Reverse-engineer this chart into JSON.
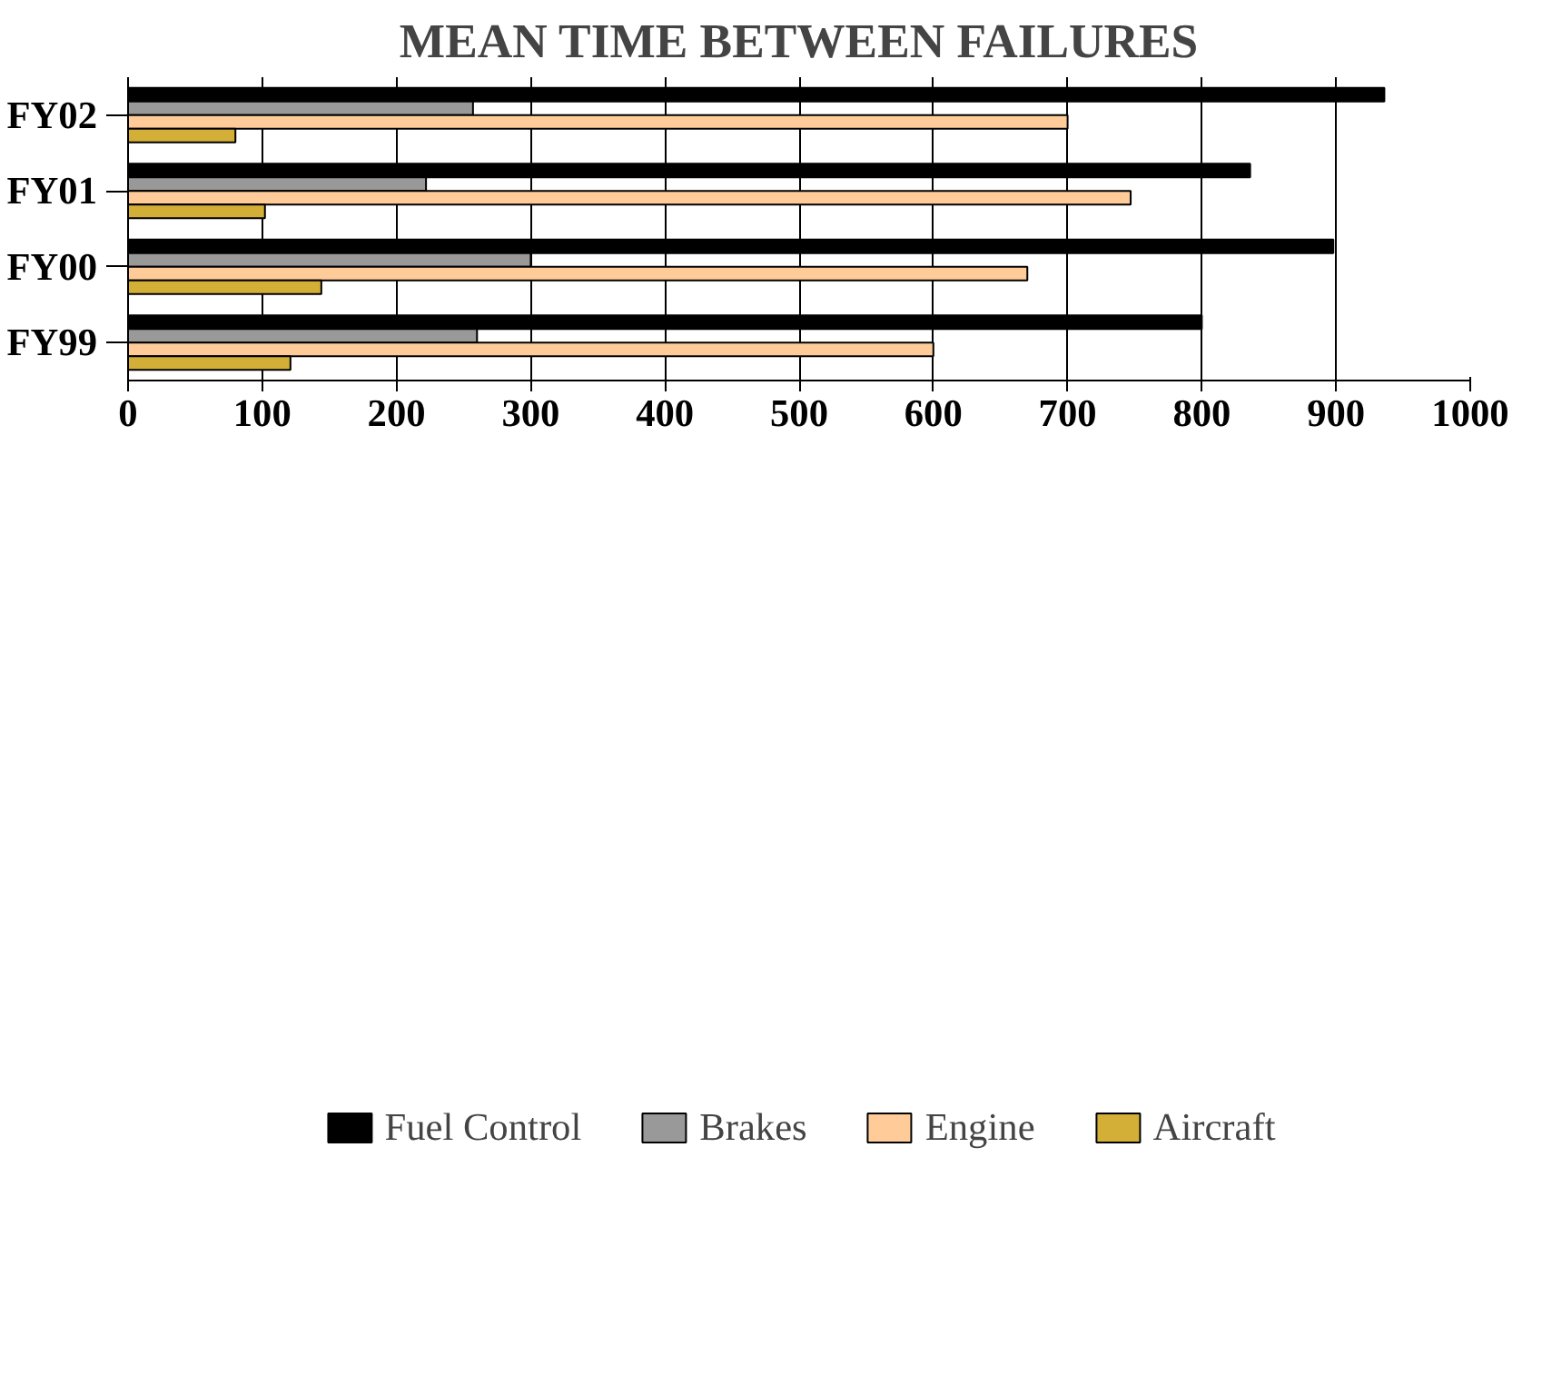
{
  "chart_data": {
    "type": "bar",
    "orientation": "horizontal",
    "title": "MEAN TIME BETWEEN FAILURES",
    "categories": [
      "FY02",
      "FY01",
      "FY00",
      "FY99"
    ],
    "series": [
      {
        "name": "Fuel Control",
        "color": "#000000",
        "values": [
          936,
          836,
          898,
          800
        ]
      },
      {
        "name": "Brakes",
        "color": "#999999",
        "values": [
          257,
          222,
          300,
          260
        ]
      },
      {
        "name": "Engine",
        "color": "#ffcc99",
        "values": [
          700,
          747,
          670,
          600
        ]
      },
      {
        "name": "Aircraft",
        "color": "#d4af37",
        "values": [
          80,
          102,
          144,
          121
        ]
      }
    ],
    "xlim": [
      0,
      1000
    ],
    "xticks": [
      0,
      100,
      200,
      300,
      400,
      500,
      600,
      700,
      800,
      900,
      1000
    ],
    "grid": "x",
    "legend": "bottom"
  }
}
